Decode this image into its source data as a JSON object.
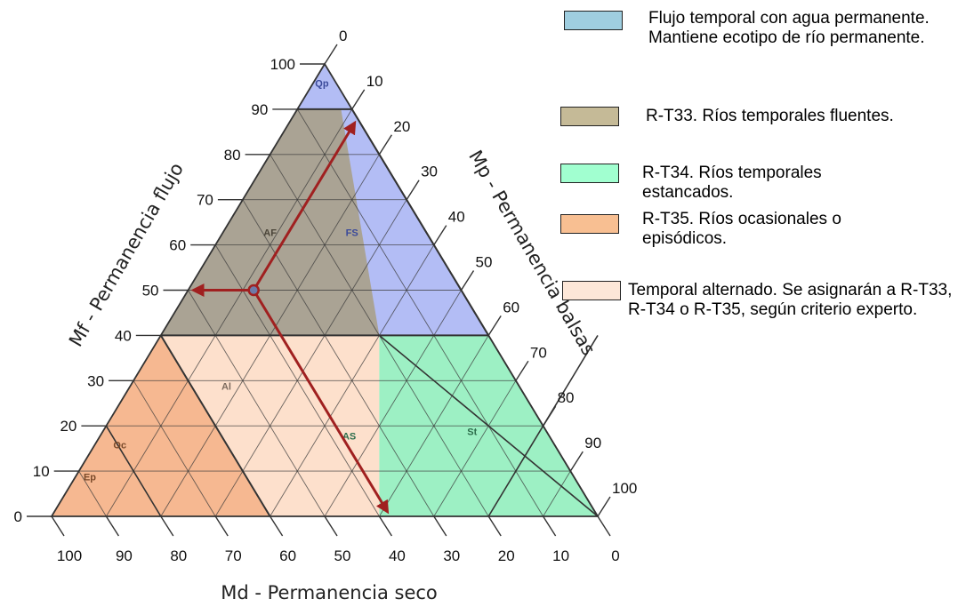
{
  "axes": {
    "mf_title": "Mf - Permanencia flujo",
    "mp_title": "Mp - Permanencia balsas",
    "md_title": "Md - Permanencia seco",
    "left_ticks": [
      "0",
      "10",
      "20",
      "30",
      "40",
      "50",
      "60",
      "70",
      "80",
      "90",
      "100"
    ],
    "right_ticks": [
      "0",
      "10",
      "20",
      "30",
      "40",
      "50",
      "60",
      "70",
      "80",
      "90",
      "100"
    ],
    "bottom_ticks": [
      "100",
      "90",
      "80",
      "70",
      "60",
      "50",
      "40",
      "30",
      "20",
      "10",
      "0"
    ]
  },
  "zones": [
    {
      "code": "Qp",
      "color": "#b3bdf5",
      "label_color": "#3b4a9a"
    },
    {
      "code": "FS",
      "color": "#b3bdf5",
      "label_color": "#3b4a9a"
    },
    {
      "code": "AF",
      "color": "#aaa394",
      "label_color": "#4a4438"
    },
    {
      "code": "Al",
      "color": "#fde0cc",
      "label_color": "#7b6a5e"
    },
    {
      "code": "AS",
      "color": "#9df0c4",
      "label_color": "#2d6e4c"
    },
    {
      "code": "St",
      "color": "#9df0c4",
      "label_color": "#2d6e4c"
    },
    {
      "code": "Oc",
      "color": "#f6b891",
      "label_color": "#7a4a2a"
    },
    {
      "code": "Ep",
      "color": "#f6b891",
      "label_color": "#7a4a2a"
    }
  ],
  "example_point": {
    "mf": 50,
    "mp": 12,
    "md": 38,
    "arrow_color": "#a02020"
  },
  "legend": [
    {
      "color": "#9fcee0",
      "text": "Flujo temporal con agua permanente. Mantiene ecotipo de río permanente."
    },
    {
      "color": "#c5ba97",
      "text": "R-T33. Ríos temporales fluentes."
    },
    {
      "color": "#a1ffd0",
      "text": "R-T34. Ríos temporales estancados."
    },
    {
      "color": "#f8bf92",
      "text": "R-T35. Ríos ocasionales o episódicos."
    },
    {
      "color": "#fde7d8",
      "text": "Temporal alternado. Se asignarán a R-T33, R-T34 o R-T35, según criterio experto."
    }
  ]
}
